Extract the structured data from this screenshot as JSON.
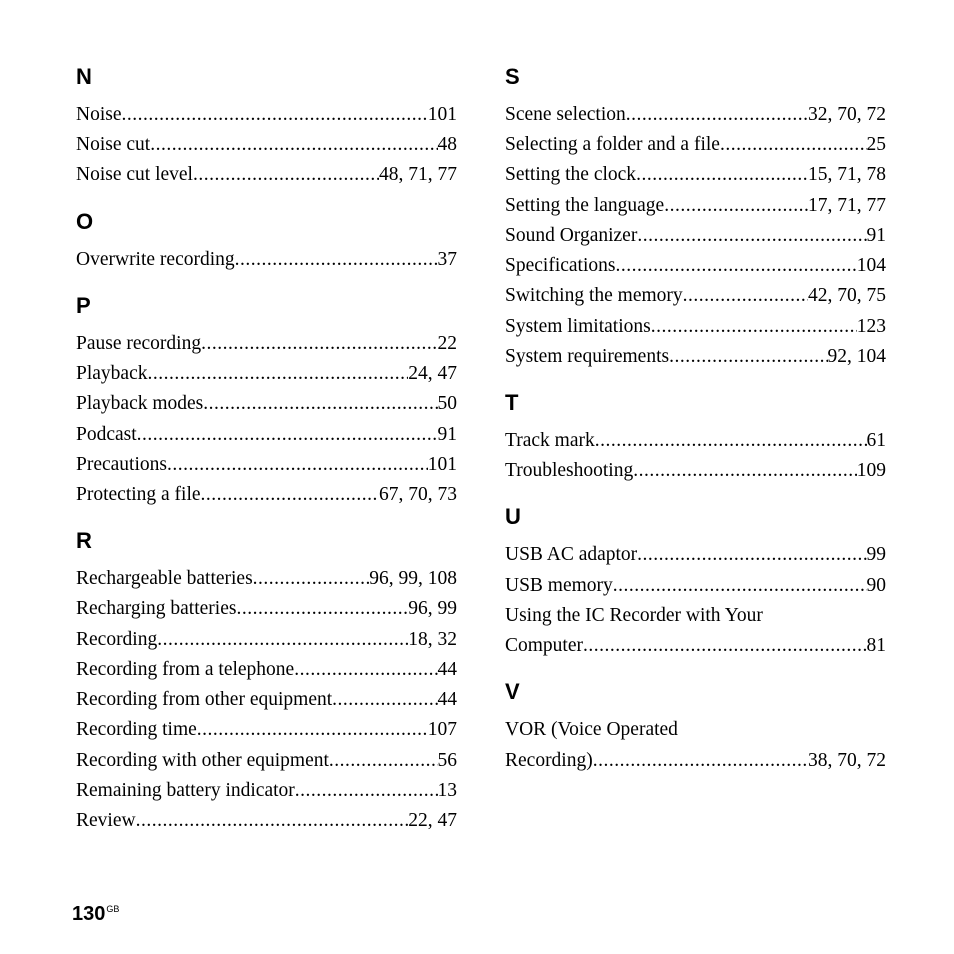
{
  "page_number": "130",
  "page_suffix": "GB",
  "left_column": [
    {
      "letter": "N",
      "entries": [
        {
          "term": "Noise",
          "pages": "101"
        },
        {
          "term": "Noise cut",
          "pages": "48"
        },
        {
          "term": "Noise cut level",
          "pages": "48, 71, 77"
        }
      ]
    },
    {
      "letter": "O",
      "entries": [
        {
          "term": "Overwrite recording",
          "pages": "37"
        }
      ]
    },
    {
      "letter": "P",
      "entries": [
        {
          "term": "Pause recording",
          "pages": "22"
        },
        {
          "term": "Playback",
          "pages": "24, 47"
        },
        {
          "term": "Playback modes",
          "pages": "50"
        },
        {
          "term": "Podcast",
          "pages": "91"
        },
        {
          "term": "Precautions",
          "pages": "101"
        },
        {
          "term": "Protecting a file",
          "pages": "67, 70, 73"
        }
      ]
    },
    {
      "letter": "R",
      "entries": [
        {
          "term": "Rechargeable batteries",
          "pages": "96, 99, 108"
        },
        {
          "term": "Recharging batteries",
          "pages": "96, 99"
        },
        {
          "term": "Recording",
          "pages": "18, 32"
        },
        {
          "term": "Recording from a telephone",
          "pages": "44"
        },
        {
          "term": "Recording from other equipment",
          "pages": "44"
        },
        {
          "term": "Recording time",
          "pages": "107"
        },
        {
          "term": "Recording with other equipment",
          "pages": "56"
        },
        {
          "term": "Remaining battery indicator",
          "pages": "13"
        },
        {
          "term": "Review",
          "pages": "22, 47"
        }
      ]
    }
  ],
  "right_column": [
    {
      "letter": "S",
      "entries": [
        {
          "term": "Scene selection",
          "pages": "32, 70, 72"
        },
        {
          "term": "Selecting a folder and a file",
          "pages": "25"
        },
        {
          "term": "Setting the clock",
          "pages": "15, 71, 78"
        },
        {
          "term": "Setting the language",
          "pages": "17, 71, 77"
        },
        {
          "term": "Sound Organizer",
          "pages": "91"
        },
        {
          "term": "Specifications",
          "pages": "104"
        },
        {
          "term": "Switching the memory",
          "pages": "42, 70, 75"
        },
        {
          "term": "System limitations",
          "pages": "123"
        },
        {
          "term": "System requirements",
          "pages": "92, 104"
        }
      ]
    },
    {
      "letter": "T",
      "entries": [
        {
          "term": "Track mark",
          "pages": "61"
        },
        {
          "term": "Troubleshooting",
          "pages": "109"
        }
      ]
    },
    {
      "letter": "U",
      "entries": [
        {
          "term": "USB AC adaptor",
          "pages": "99"
        },
        {
          "term": "USB memory",
          "pages": "90"
        },
        {
          "term_lines": [
            "Using the IC Recorder with Your",
            "Computer"
          ],
          "pages": "81"
        }
      ]
    },
    {
      "letter": "V",
      "entries": [
        {
          "term_lines": [
            "VOR (Voice Operated",
            "Recording)"
          ],
          "pages": "38, 70, 72"
        }
      ]
    }
  ]
}
